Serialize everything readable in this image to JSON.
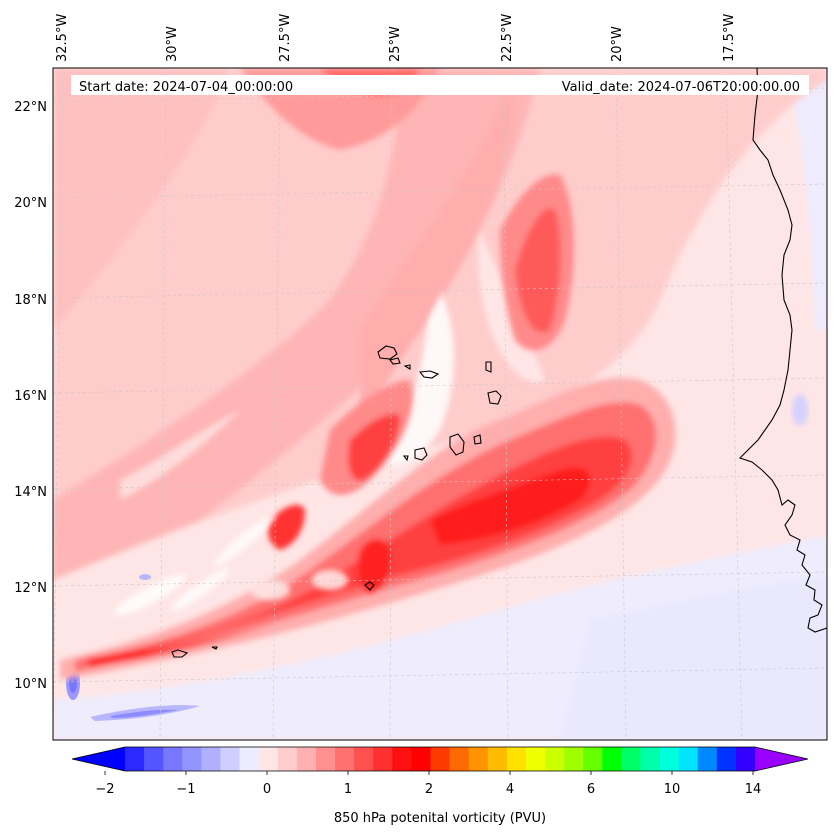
{
  "map": {
    "start_date": "Start date: 2024-07-04_00:00:00",
    "valid_date": "Valid_date: 2024-07-06T20:00:00.00",
    "lon_labels": [
      "32.5°W",
      "30°W",
      "27.5°W",
      "25°W",
      "22.5°W",
      "20°W",
      "17.5°W"
    ],
    "lat_labels": [
      "22°N",
      "20°N",
      "18°N",
      "16°N",
      "14°N",
      "12°N",
      "10°N"
    ],
    "colors": {
      "background_pink": "#ffe6e6",
      "light_pink": "#ffcccc",
      "mid_pink": "#ffadad",
      "salmon": "#ff8a8a",
      "red_light": "#ff6262",
      "red": "#ff3b3b",
      "red_dark": "#ff1a1a",
      "white": "#ffffff",
      "pale_blue": "#e6e6ff",
      "blue_light": "#b3b3ff",
      "blue": "#8080ff"
    }
  },
  "colorbar": {
    "label": "850 hPa potenital vorticity (PVU)",
    "tick_labels": [
      "−2",
      "−1",
      "0",
      "1",
      "2",
      "4",
      "6",
      "10",
      "14"
    ],
    "colors": [
      "#0000ff",
      "#2a2aff",
      "#5555ff",
      "#7777ff",
      "#9494ff",
      "#b0b0ff",
      "#cfcfff",
      "#ececff",
      "#ffe6e6",
      "#ffcccc",
      "#ffb0b0",
      "#ff9090",
      "#ff7070",
      "#ff5050",
      "#ff3030",
      "#ff1010",
      "#ff0000",
      "#ff3a00",
      "#ff6a00",
      "#ff9400",
      "#ffbb00",
      "#ffe200",
      "#f0ff00",
      "#ccff00",
      "#a0ff00",
      "#66ff00",
      "#00ff00",
      "#00ff66",
      "#00ffaa",
      "#00ffdd",
      "#00e5ff",
      "#0088ff",
      "#0033ff",
      "#3300ff",
      "#9900ff"
    ]
  }
}
